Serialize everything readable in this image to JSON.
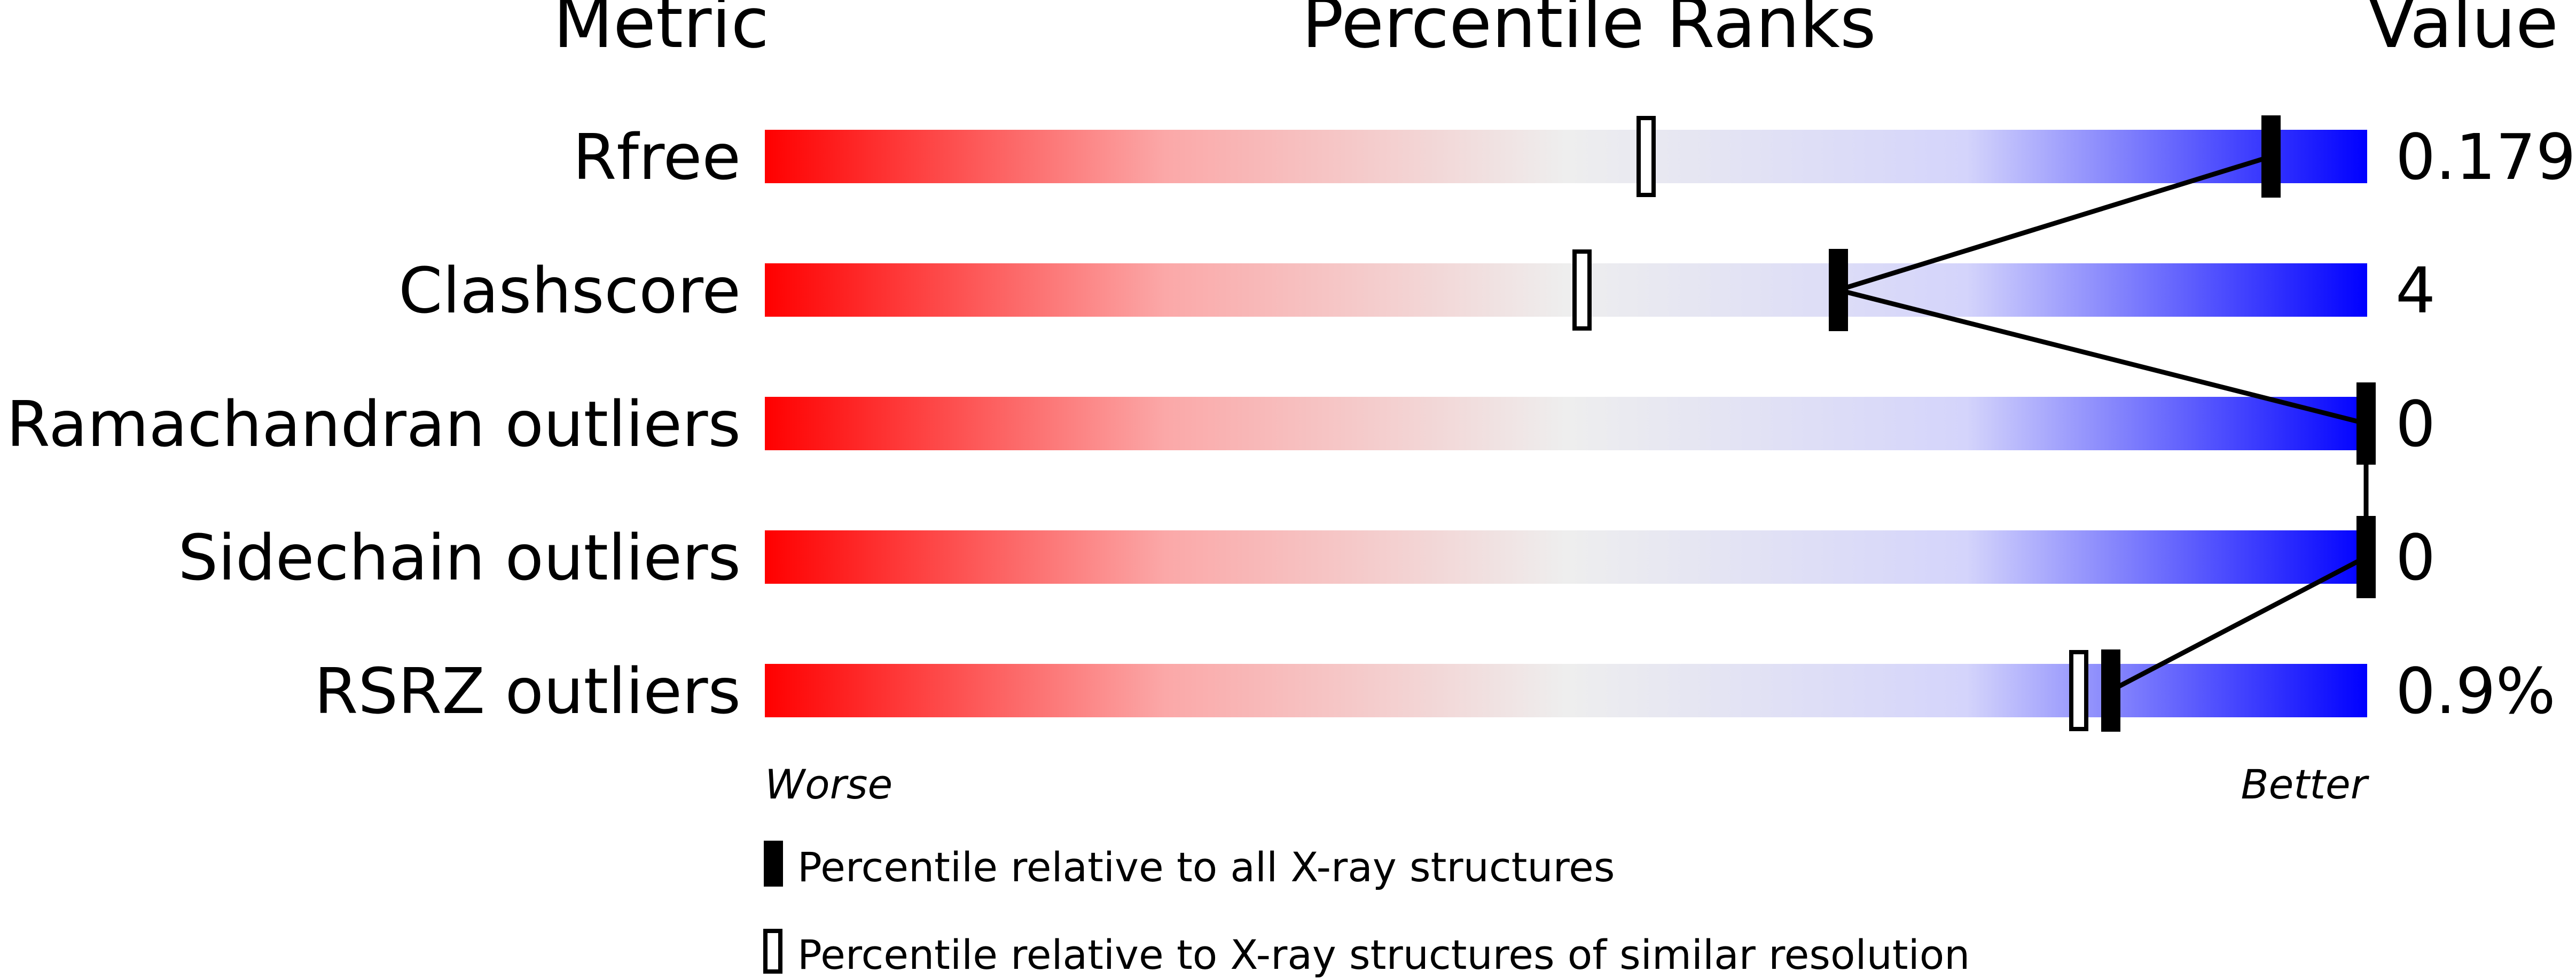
{
  "headers": {
    "metric": "Metric",
    "percentile": "Percentile Ranks",
    "value": "Value"
  },
  "axis_notes": {
    "worse": "Worse",
    "better": "Better"
  },
  "legend": {
    "all": "Percentile relative to all X-ray structures",
    "similar": "Percentile relative to X-ray structures of similar resolution"
  },
  "colors": {
    "worse": "#ff0000",
    "middle": "#eeeeee",
    "better": "#0000ff",
    "marker": "#000000"
  },
  "chart_data": {
    "type": "bar",
    "title": "Percentile Ranks",
    "xlim": [
      0,
      100
    ],
    "metrics": [
      {
        "name": "Rfree",
        "value": "0.179",
        "pct_all": 94,
        "pct_similar": 55
      },
      {
        "name": "Clashscore",
        "value": "4",
        "pct_all": 67,
        "pct_similar": 51
      },
      {
        "name": "Ramachandran outliers",
        "value": "0",
        "pct_all": 100,
        "pct_similar": null
      },
      {
        "name": "Sidechain outliers",
        "value": "0",
        "pct_all": 100,
        "pct_similar": null
      },
      {
        "name": "RSRZ outliers",
        "value": "0.9%",
        "pct_all": 84,
        "pct_similar": 82
      }
    ]
  }
}
